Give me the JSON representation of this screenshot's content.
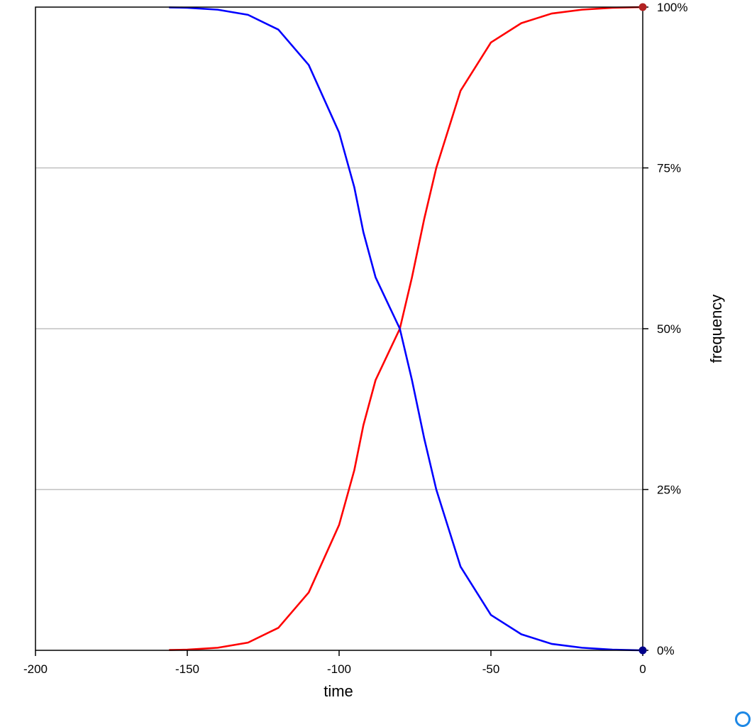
{
  "chart_data": {
    "type": "line",
    "xlabel": "time",
    "ylabel": "frequency",
    "xlim": [
      -200,
      0
    ],
    "ylim": [
      0,
      1
    ],
    "x_ticks": [
      -200,
      -150,
      -100,
      -50,
      0
    ],
    "x_tick_labels": [
      "-200",
      "-150",
      "-100",
      "-50",
      "0"
    ],
    "y_ticks": [
      0,
      0.25,
      0.5,
      0.75,
      1
    ],
    "y_tick_labels": [
      "0%",
      "25%",
      "50%",
      "75%",
      "100%"
    ],
    "y_axis_side": "right",
    "grid": "horizontal",
    "grid_color": "#c0c0c0",
    "series": [
      {
        "color": "#ff0000",
        "x": [
          -156,
          -150,
          -140,
          -130,
          -120,
          -110,
          -100,
          -95,
          -92,
          -88,
          -84,
          -80,
          -76,
          -72,
          -68,
          -64,
          -60,
          -50,
          -40,
          -30,
          -20,
          -10,
          0
        ],
        "values": [
          0.0005,
          0.001,
          0.004,
          0.012,
          0.035,
          0.09,
          0.195,
          0.28,
          0.35,
          0.42,
          0.46,
          0.5,
          0.58,
          0.67,
          0.75,
          0.81,
          0.87,
          0.945,
          0.975,
          0.99,
          0.996,
          0.999,
          1.0
        ],
        "end_marker": {
          "x": 0,
          "y": 1.0,
          "color": "#b22222"
        }
      },
      {
        "color": "#0000ff",
        "x": [
          -156,
          -150,
          -140,
          -130,
          -120,
          -110,
          -100,
          -95,
          -92,
          -88,
          -84,
          -80,
          -76,
          -72,
          -68,
          -64,
          -60,
          -50,
          -40,
          -30,
          -20,
          -10,
          0
        ],
        "values": [
          0.9995,
          0.999,
          0.996,
          0.988,
          0.965,
          0.91,
          0.805,
          0.72,
          0.65,
          0.58,
          0.54,
          0.5,
          0.42,
          0.33,
          0.25,
          0.19,
          0.13,
          0.055,
          0.025,
          0.01,
          0.004,
          0.001,
          0.0
        ],
        "end_marker": {
          "x": 0,
          "y": 0.0,
          "color": "#00008b"
        }
      }
    ]
  }
}
